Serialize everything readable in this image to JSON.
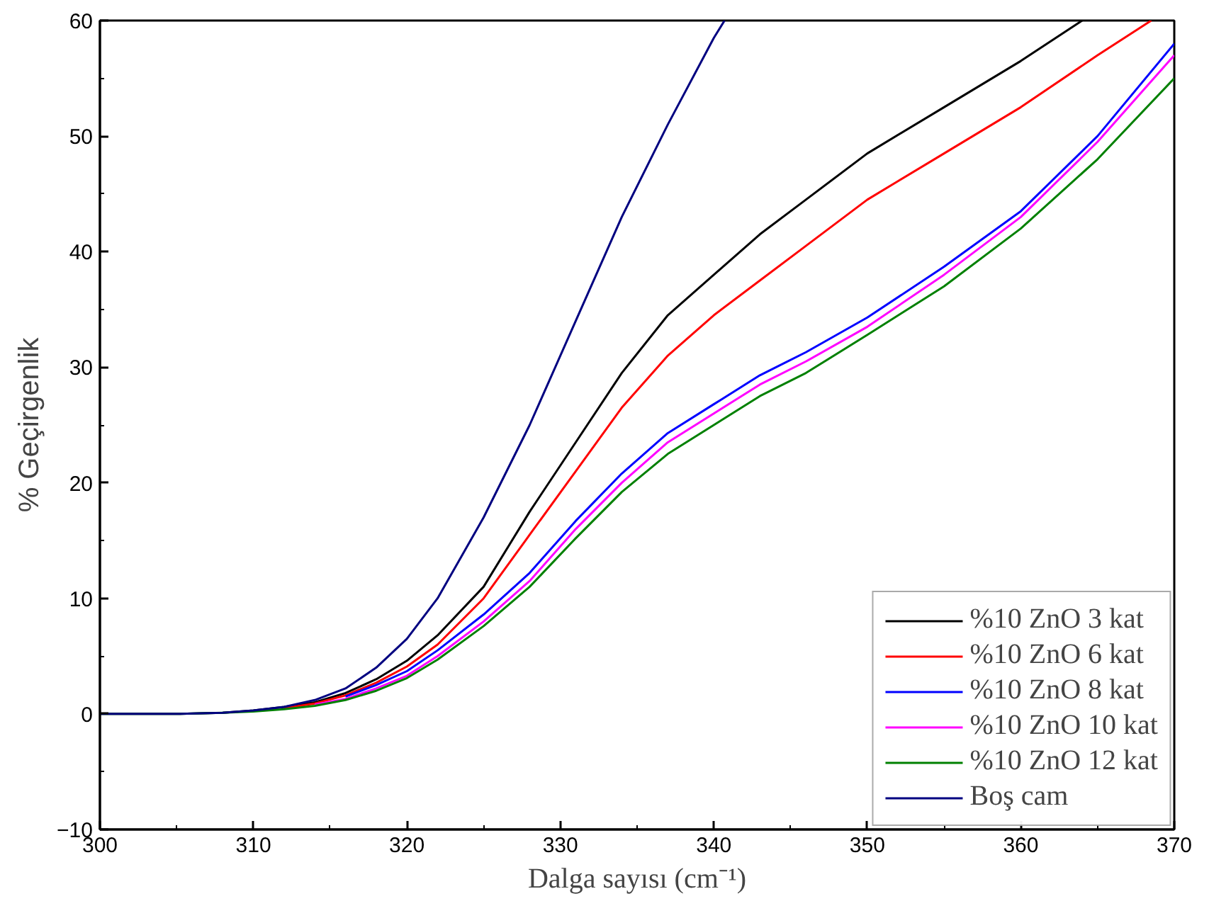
{
  "chart_data": {
    "type": "line",
    "xlabel": "Dalga sayısı (cm⁻¹)",
    "ylabel": "% Geçirgenlik",
    "xlim": [
      300,
      370
    ],
    "ylim": [
      -10,
      60
    ],
    "xticks": [
      300,
      310,
      320,
      330,
      340,
      350,
      360,
      370
    ],
    "yticks": [
      -10,
      0,
      10,
      20,
      30,
      40,
      50,
      60
    ],
    "grid": false,
    "legend": "bottom right",
    "line_style": "solid",
    "marker": "none",
    "series": [
      {
        "name": "%10 ZnO 3 kat",
        "color": "#000000",
        "x": [
          300,
          305,
          308,
          310,
          312,
          314,
          316,
          318,
          320,
          322,
          325,
          328,
          331,
          334,
          337,
          340,
          343,
          346,
          350,
          355,
          360,
          364
        ],
        "values": [
          0,
          0,
          0.1,
          0.3,
          0.6,
          1,
          1.8,
          3,
          4.6,
          6.8,
          11,
          17.5,
          23.5,
          29.5,
          34.5,
          38,
          41.5,
          44.5,
          48.5,
          52.5,
          56.5,
          60
        ]
      },
      {
        "name": "%10 ZnO 6 kat",
        "color": "#ff0000",
        "x": [
          312,
          314,
          316,
          318,
          320,
          322,
          325,
          328,
          331,
          334,
          337,
          340,
          343,
          346,
          350,
          355,
          360,
          365,
          368.5
        ],
        "values": [
          0.5,
          0.9,
          1.6,
          2.7,
          4.1,
          6,
          10,
          15.5,
          21,
          26.5,
          31,
          34.5,
          37.5,
          40.5,
          44.5,
          48.5,
          52.5,
          57,
          60
        ]
      },
      {
        "name": "%10 ZnO 8 kat",
        "color": "#0000ff",
        "x": [
          316,
          318,
          320,
          322,
          325,
          328,
          331,
          334,
          337,
          340,
          343,
          346,
          350,
          355,
          360,
          365,
          370
        ],
        "values": [
          1.5,
          2.5,
          3.7,
          5.5,
          8.6,
          12.2,
          16.7,
          20.8,
          24.3,
          26.8,
          29.3,
          31.3,
          34.3,
          38.7,
          43.5,
          50,
          58
        ]
      },
      {
        "name": "%10 ZnO 10 kat",
        "color": "#ff00ff",
        "x": [
          314,
          316,
          318,
          320,
          322,
          325,
          328,
          331,
          334,
          337,
          340,
          343,
          346,
          350,
          355,
          360,
          365,
          370
        ],
        "values": [
          0.8,
          1.3,
          2.2,
          3.3,
          5,
          8,
          11.5,
          16,
          20,
          23.5,
          26,
          28.5,
          30.5,
          33.5,
          38,
          43,
          49.5,
          57
        ]
      },
      {
        "name": "%10 ZnO 12 kat",
        "color": "#008000",
        "x": [
          300,
          305,
          308,
          310,
          312,
          314,
          316,
          318,
          320,
          322,
          325,
          328,
          331,
          334,
          337,
          340,
          343,
          346,
          350,
          355,
          360,
          365,
          370
        ],
        "values": [
          0,
          0,
          0.1,
          0.2,
          0.4,
          0.7,
          1.2,
          2,
          3.1,
          4.7,
          7.6,
          11,
          15.2,
          19.2,
          22.5,
          25,
          27.5,
          29.5,
          32.8,
          37,
          42,
          48,
          55
        ]
      },
      {
        "name": "Boş cam",
        "color": "#000080",
        "x": [
          300,
          305,
          308,
          310,
          312,
          314,
          316,
          318,
          320,
          322,
          325,
          328,
          331,
          334,
          337,
          340,
          340.7
        ],
        "values": [
          0,
          0,
          0.1,
          0.3,
          0.6,
          1.2,
          2.2,
          4,
          6.5,
          10,
          17,
          25,
          34,
          43,
          51,
          58.5,
          60
        ]
      }
    ]
  }
}
